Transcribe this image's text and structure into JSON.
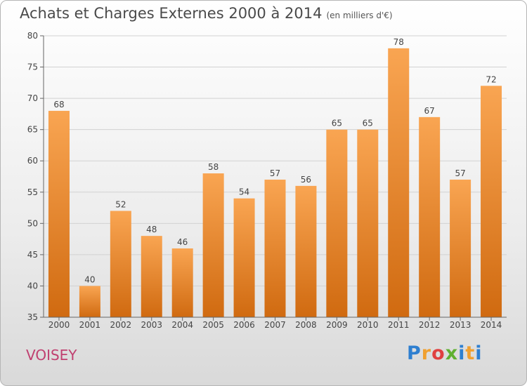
{
  "header": {
    "title": "Achats et Charges Externes 2000 à 2014",
    "subtitle": "(en milliers d'€)"
  },
  "footer": {
    "commune": "VOISEY",
    "logo_letters": [
      "P",
      "r",
      "o",
      "x",
      "i",
      "t",
      "i"
    ],
    "logo_colors": [
      "#2e7fd0",
      "#f0a030",
      "#e04040",
      "#60b030",
      "#2e7fd0",
      "#f0a030",
      "#2e7fd0"
    ]
  },
  "chart_data": {
    "type": "bar",
    "title": "Achats et Charges Externes 2000 à 2014",
    "subtitle": "(en milliers d'€)",
    "categories": [
      "2000",
      "2001",
      "2002",
      "2003",
      "2004",
      "2005",
      "2006",
      "2007",
      "2008",
      "2009",
      "2010",
      "2011",
      "2012",
      "2013",
      "2014"
    ],
    "values": [
      68,
      40,
      52,
      48,
      46,
      58,
      54,
      57,
      56,
      65,
      65,
      78,
      67,
      57,
      72
    ],
    "ylim": [
      35,
      80
    ],
    "yticks": [
      35,
      40,
      45,
      50,
      55,
      60,
      65,
      70,
      75,
      80
    ],
    "grid": true,
    "bar_color_top": "#f9a552",
    "bar_color_bottom": "#d06a10"
  }
}
